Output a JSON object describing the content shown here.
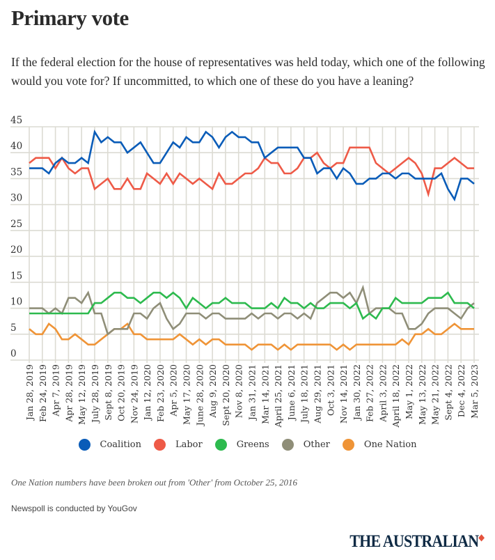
{
  "header": {
    "title": "Primary vote",
    "subtitle": "If the federal election for the house of representatives was held today, which one of the following would you vote for? If uncommitted, to which one of these do you have a leaning?"
  },
  "footer": {
    "note": "One Nation numbers have been broken out from 'Other' from October 25, 2016",
    "source": "Newspoll is conducted by YouGov",
    "logo": "THE AUSTRALIAN"
  },
  "chart_data": {
    "type": "line",
    "title": "Primary vote",
    "xlabel": "",
    "ylabel": "",
    "ylim": [
      0,
      45
    ],
    "yticks": [
      0,
      5,
      10,
      15,
      20,
      25,
      30,
      35,
      40,
      45
    ],
    "grid": true,
    "legend_position": "bottom",
    "x_tick_labels": [
      "Jan 28, 2019",
      "Feb 24, 2019",
      "Apr 7, 2019",
      "Apr 28, 2019",
      "May 12, 2019",
      "July 28, 2019",
      "Sept 8, 2019",
      "Oct 20, 2019",
      "Nov 24, 2019",
      "Jan 12, 2020",
      "Feb 23, 2020",
      "Apr 5, 2020",
      "May 17, 2020",
      "June 28, 2020",
      "Aug 9, 2020",
      "Sept 20, 2020",
      "Nov 8, 2020",
      "Jan 31, 2021",
      "Mar 14, 2021",
      "April 25, 2021",
      "June 6, 2021",
      "July 18, 2021",
      "Aug 29, 2021",
      "Oct 3, 2021",
      "Nov 14, 2021",
      "Jan 30, 2022",
      "Feb 27, 2022",
      "April 3, 2022",
      "April 18, 2022",
      "May 1, 2022",
      "May 13, 2022",
      "May 21, 2022",
      "Sept 4, 2022",
      "Dec 4, 2022",
      "Mar 5, 2023"
    ],
    "points_per_tick": 2,
    "series": [
      {
        "name": "Coalition",
        "color": "#0a5cb8",
        "values": [
          37,
          37,
          37,
          36,
          38,
          39,
          38,
          38,
          39,
          38,
          44,
          42,
          43,
          42,
          42,
          40,
          41,
          42,
          40,
          38,
          38,
          40,
          42,
          41,
          43,
          42,
          42,
          44,
          43,
          41,
          43,
          44,
          43,
          43,
          42,
          42,
          39,
          40,
          41,
          41,
          41,
          41,
          39,
          39,
          36,
          37,
          37,
          35,
          37,
          36,
          34,
          34,
          35,
          35,
          36,
          36,
          35,
          36,
          36,
          35,
          35,
          35,
          35,
          36,
          33,
          31,
          35,
          35,
          34,
          35
        ]
      },
      {
        "name": "Labor",
        "color": "#ee5a47",
        "values": [
          38,
          39,
          39,
          39,
          37,
          39,
          37,
          36,
          37,
          37,
          33,
          34,
          35,
          33,
          33,
          35,
          33,
          33,
          36,
          35,
          34,
          36,
          34,
          36,
          35,
          34,
          35,
          34,
          33,
          36,
          34,
          34,
          35,
          36,
          36,
          37,
          39,
          38,
          38,
          36,
          36,
          37,
          39,
          39,
          40,
          38,
          37,
          38,
          38,
          41,
          41,
          41,
          41,
          38,
          37,
          36,
          37,
          38,
          39,
          38,
          36,
          32,
          37,
          37,
          38,
          39,
          38,
          37,
          37,
          37
        ]
      },
      {
        "name": "Greens",
        "color": "#2dba4e",
        "values": [
          9,
          9,
          9,
          9,
          9,
          9,
          9,
          9,
          9,
          9,
          11,
          11,
          12,
          13,
          13,
          12,
          12,
          11,
          12,
          13,
          13,
          12,
          13,
          12,
          10,
          12,
          11,
          10,
          11,
          11,
          12,
          11,
          11,
          11,
          10,
          10,
          10,
          11,
          10,
          12,
          11,
          11,
          10,
          11,
          10,
          10,
          11,
          11,
          11,
          10,
          11,
          8,
          9,
          8,
          10,
          10,
          12,
          11,
          11,
          11,
          11,
          12,
          12,
          12,
          13,
          11,
          11,
          11,
          10,
          10
        ]
      },
      {
        "name": "Other",
        "color": "#8f8e78",
        "values": [
          10,
          10,
          10,
          9,
          10,
          9,
          12,
          12,
          11,
          13,
          9,
          9,
          5,
          6,
          6,
          6,
          9,
          9,
          8,
          10,
          11,
          8,
          6,
          7,
          9,
          9,
          9,
          8,
          9,
          9,
          8,
          8,
          8,
          8,
          9,
          8,
          9,
          9,
          8,
          9,
          9,
          8,
          9,
          8,
          11,
          12,
          13,
          13,
          12,
          13,
          11,
          14,
          9,
          10,
          10,
          10,
          9,
          9,
          6,
          6,
          7,
          9,
          10,
          10,
          10,
          9,
          8,
          10,
          11,
          10
        ]
      },
      {
        "name": "One Nation",
        "color": "#ef9437",
        "values": [
          6,
          5,
          5,
          7,
          6,
          4,
          4,
          5,
          4,
          3,
          3,
          4,
          5,
          6,
          6,
          7,
          5,
          5,
          4,
          4,
          4,
          4,
          4,
          5,
          4,
          3,
          4,
          3,
          4,
          4,
          3,
          3,
          3,
          3,
          2,
          3,
          3,
          3,
          2,
          3,
          2,
          3,
          3,
          3,
          3,
          3,
          3,
          2,
          3,
          2,
          3,
          3,
          3,
          3,
          3,
          3,
          3,
          4,
          3,
          5,
          5,
          6,
          5,
          5,
          6,
          7,
          6,
          6,
          6,
          7
        ]
      }
    ]
  }
}
